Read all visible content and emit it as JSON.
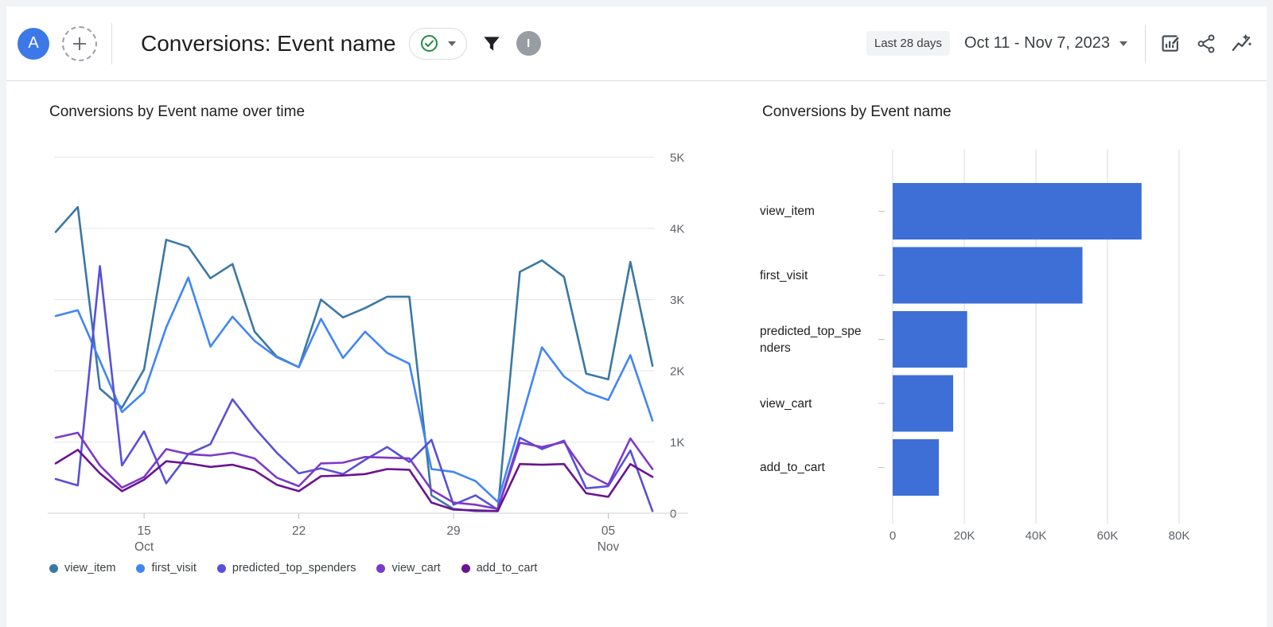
{
  "header": {
    "avatar_letter": "A",
    "title": "Conversions: Event name",
    "status_icon": "check-circle",
    "date_chip": "Last 28 days",
    "date_range": "Oct 11 - Nov 7, 2023",
    "identity_letter": "I",
    "toolbar_icons": [
      "customize-report",
      "share",
      "insights"
    ]
  },
  "colors": {
    "avatar_blue": "#3c78e8",
    "check_green": "#1e8e3e",
    "bar_fill": "#3e6fd6",
    "grid_line": "#e6e6e6",
    "axis_text": "#5f6368"
  },
  "chart_data": [
    {
      "type": "line",
      "title": "Conversions by Event name over time",
      "categories": [
        "Oct 11",
        "Oct 12",
        "Oct 13",
        "Oct 14",
        "Oct 15",
        "Oct 16",
        "Oct 17",
        "Oct 18",
        "Oct 19",
        "Oct 20",
        "Oct 21",
        "Oct 22",
        "Oct 23",
        "Oct 24",
        "Oct 25",
        "Oct 26",
        "Oct 27",
        "Oct 28",
        "Oct 29",
        "Oct 30",
        "Oct 31",
        "Nov 1",
        "Nov 2",
        "Nov 3",
        "Nov 4",
        "Nov 5",
        "Nov 6",
        "Nov 7"
      ],
      "ylim": [
        0,
        5000
      ],
      "yticks": [
        "0",
        "1K",
        "2K",
        "3K",
        "4K",
        "5K"
      ],
      "xticks": [
        {
          "index": 4,
          "label": "15",
          "sub": "Oct"
        },
        {
          "index": 11,
          "label": "22",
          "sub": ""
        },
        {
          "index": 18,
          "label": "29",
          "sub": ""
        },
        {
          "index": 25,
          "label": "05",
          "sub": "Nov"
        }
      ],
      "legend_position": "bottom",
      "series": [
        {
          "name": "view_item",
          "color": "#3a78a4",
          "values": [
            3950,
            4300,
            1750,
            1480,
            2020,
            3840,
            3740,
            3300,
            3500,
            2550,
            2200,
            2050,
            3000,
            2750,
            2880,
            3040,
            3040,
            250,
            60,
            30,
            30,
            3390,
            3550,
            3320,
            1960,
            1880,
            3530,
            2070
          ]
        },
        {
          "name": "first_visit",
          "color": "#4285f4",
          "values": [
            2770,
            2850,
            2140,
            1420,
            1700,
            2610,
            3310,
            2340,
            2760,
            2420,
            2190,
            2050,
            2730,
            2180,
            2550,
            2250,
            2100,
            620,
            580,
            450,
            160,
            1240,
            2330,
            1920,
            1700,
            1590,
            2220,
            1300
          ]
        },
        {
          "name": "predicted_top_spenders",
          "color": "#5850d8",
          "values": [
            480,
            390,
            3470,
            670,
            1150,
            420,
            830,
            970,
            1600,
            1200,
            850,
            560,
            630,
            550,
            750,
            930,
            720,
            1030,
            120,
            250,
            50,
            1060,
            900,
            1020,
            350,
            380,
            880,
            30
          ]
        },
        {
          "name": "view_cart",
          "color": "#7d3ac8",
          "values": [
            1060,
            1130,
            670,
            360,
            510,
            900,
            830,
            810,
            850,
            770,
            500,
            380,
            700,
            710,
            790,
            780,
            770,
            330,
            150,
            120,
            60,
            990,
            930,
            1000,
            560,
            400,
            1050,
            620
          ]
        },
        {
          "name": "add_to_cart",
          "color": "#6b1392",
          "values": [
            700,
            890,
            560,
            310,
            470,
            730,
            700,
            650,
            680,
            600,
            400,
            310,
            520,
            530,
            550,
            620,
            610,
            150,
            50,
            40,
            30,
            690,
            680,
            690,
            280,
            230,
            690,
            510
          ]
        }
      ]
    },
    {
      "type": "bar",
      "title": "Conversions by Event name",
      "orientation": "horizontal",
      "categories": [
        "view_item",
        "first_visit",
        "predicted_top_spenders",
        "view_cart",
        "add_to_cart"
      ],
      "values": [
        69500,
        53000,
        20800,
        16900,
        12900
      ],
      "xlim": [
        0,
        82000
      ],
      "xticks": [
        {
          "value": 0,
          "label": "0"
        },
        {
          "value": 20000,
          "label": "20K"
        },
        {
          "value": 40000,
          "label": "40K"
        },
        {
          "value": 60000,
          "label": "60K"
        },
        {
          "value": 80000,
          "label": "80K"
        }
      ],
      "bar_color": "#3e6fd6"
    }
  ]
}
